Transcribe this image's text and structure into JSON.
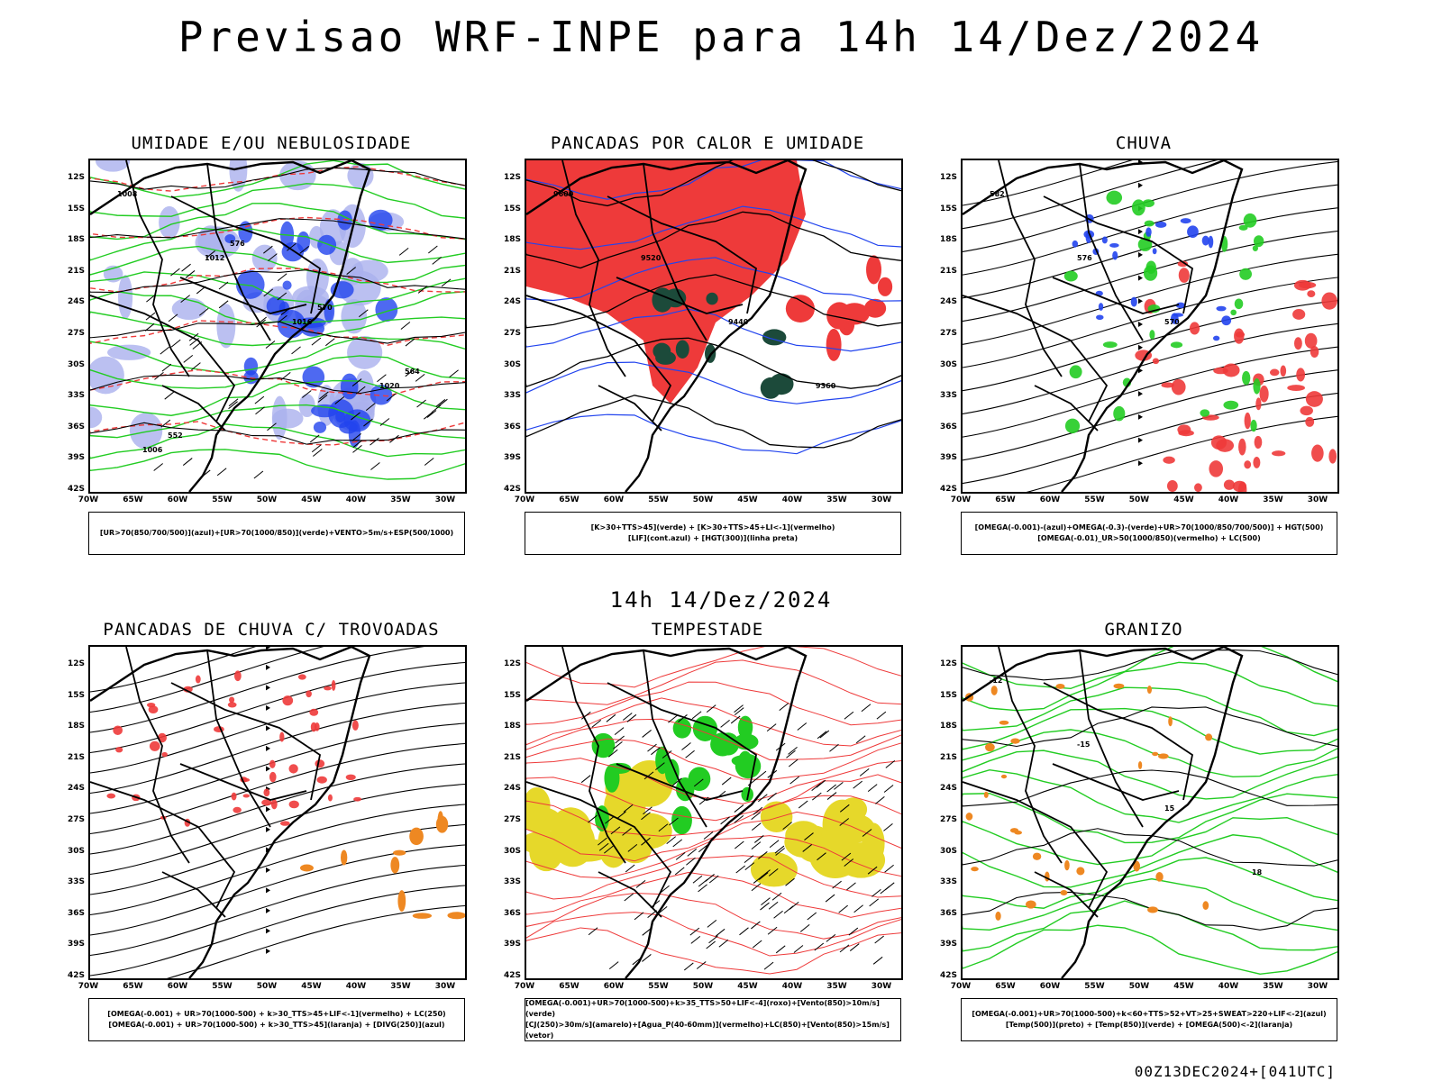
{
  "title": "Previsao WRF-INPE  para 14h 14/Dez/2024",
  "mid_label": "14h 14/Dez/2024",
  "footer": "00Z13DEC2024+[041UTC]",
  "lat_labels": [
    "12S",
    "15S",
    "18S",
    "21S",
    "24S",
    "27S",
    "30S",
    "33S",
    "36S",
    "39S",
    "42S"
  ],
  "lon_labels": [
    "70W",
    "65W",
    "60W",
    "55W",
    "50W",
    "45W",
    "40W",
    "35W",
    "30W"
  ],
  "panels": [
    {
      "title": "UMIDADE E/OU NEBULOSIDADE",
      "legend": [
        "[UR>70(850/700/500)](azul)+[UR>70(1000/850)](verde)+VENTO>5m/s+ESP(500/1000)"
      ]
    },
    {
      "title": "PANCADAS POR CALOR E UMIDADE",
      "legend": [
        "[K>30+TTS>45](verde) + [K>30+TTS>45+LI<-1](vermelho)",
        "[LIF](cont.azul) + [HGT(300)](linha preta)"
      ]
    },
    {
      "title": "CHUVA",
      "legend": [
        "[OMEGA(-0.001)-(azul)+OMEGA(-0.3)-(verde)+UR>70(1000/850/700/500)] + HGT(500)",
        "[OMEGA(-0.01)_UR>50(1000/850)(vermelho) + LC(500)"
      ]
    },
    {
      "title": "PANCADAS DE CHUVA C/ TROVOADAS",
      "legend": [
        "[OMEGA(-0.001) + UR>70(1000-500) + k>30_TTS>45+LIF<-1](vermelho) + LC(250)",
        "[OMEGA(-0.001) + UR>70(1000-500) + k>30_TTS>45](laranja) + [DIVG(250)](azul)"
      ]
    },
    {
      "title": "TEMPESTADE",
      "legend": [
        "[OMEGA(-0.001)+UR>70(1000-500)+k>35_TTS>50+LIF<-4](roxo)+[Vento(850)>10m/s](verde)",
        "[CJ(250)>30m/s](amarelo)+[Agua_P(40-60mm)](vermelho)+LC(850)+[Vento(850)>15m/s](vetor)"
      ]
    },
    {
      "title": "GRANIZO",
      "legend": [
        "[OMEGA(-0.001)+UR>70(1000-500)+k<60+TTS>52+VT>25+SWEAT>220+LIF<-2](azul)",
        "[Temp(500)](preto) + [Temp(850)](verde) + [OMEGA(500)<-2](laranja)"
      ]
    }
  ],
  "contour_labels": {
    "p1": [
      "1008",
      "1012",
      "1016",
      "1020",
      "1006",
      "576",
      "570",
      "564",
      "552"
    ],
    "p2": [
      "9600",
      "9520",
      "9440",
      "9360"
    ],
    "p3": [
      "582",
      "576",
      "570"
    ],
    "p6": [
      "-12",
      "-15",
      "15",
      "18"
    ]
  },
  "colors": {
    "red": "#ee3a3a",
    "green": "#22cc22",
    "blue": "#2244ee",
    "lightblue": "#aab0ee",
    "orange": "#ee8822",
    "yellow": "#e6d82a",
    "darkgreen": "#1c4a3a"
  }
}
